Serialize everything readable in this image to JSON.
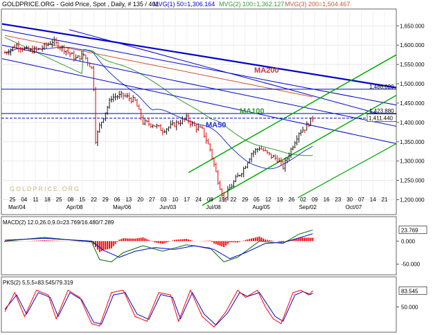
{
  "header": {
    "title": "GOLDPRICE.ORG - Gold Price, Spot , Daily, # 135 / 401",
    "mvg1": "MVG(1) 50=1,306.164",
    "mvg2": "MVG(2) 100=1,362.127",
    "mvg3": "MVG(3) 200=1,504.467"
  },
  "watermark": "GOLDPRICE.ORG",
  "colors": {
    "bull": "#111111",
    "bear": "#e00000",
    "trend": "#0000cc",
    "channel": "#00aa00",
    "ma50": "#2233cc",
    "ma100": "#339933",
    "ma200": "#cc5533",
    "macd_line": "#006600",
    "signal_line": "#0000cc",
    "hist": "#ff0000",
    "pks_k": "#ff0000",
    "pks_d": "#0000cc"
  },
  "chart_data": [
    {
      "type": "candlestick",
      "title": "Gold Price, Spot , Daily",
      "ylim": [
        1165,
        1690
      ],
      "yticks": [
        1200,
        1250,
        1300,
        1350,
        1400,
        1450,
        1500,
        1550,
        1600,
        1650
      ],
      "ytick_labels": [
        "1,200.000",
        "1,250.000",
        "1,300.000",
        "1,350.000",
        "1,400.000",
        "1,450.000",
        "1,500.000",
        "1,550.000",
        "1,600.000",
        "1,650.000"
      ],
      "xaxis_top": [
        "25",
        "04",
        "11",
        "18",
        "25",
        "08",
        "15",
        "22",
        "29",
        "06",
        "13",
        "20",
        "27",
        "03",
        "10",
        "17",
        "24",
        "08",
        "15",
        "22",
        "29",
        "05",
        "12",
        "19",
        "26",
        "02",
        "09",
        "16",
        "23",
        "30",
        "07",
        "14",
        "21"
      ],
      "xaxis_months": [
        "Mar/04",
        "Apr/08",
        "May/06",
        "Jun/03",
        "Jul/08",
        "Aug/05",
        "Sep/02",
        "Oct/07"
      ],
      "price_labels": [
        {
          "label": "1,486.020",
          "value": 1486,
          "color": "#0000cc"
        },
        {
          "label": "1,423.880",
          "value": 1423,
          "color": "#0000cc"
        },
        {
          "label": "1,411.440",
          "value": 1411,
          "color": "#0000cc",
          "boxed": true
        }
      ],
      "ma_labels": [
        "MA200",
        "MA100",
        "MA50"
      ],
      "candle_close_points": [
        {
          "bar": 0,
          "close": 1580
        },
        {
          "bar": 6,
          "close": 1600
        },
        {
          "bar": 12,
          "close": 1585
        },
        {
          "bar": 18,
          "close": 1590
        },
        {
          "bar": 24,
          "close": 1610
        },
        {
          "bar": 30,
          "close": 1590
        },
        {
          "bar": 36,
          "close": 1565
        },
        {
          "bar": 40,
          "close": 1575
        },
        {
          "bar": 44,
          "close": 1540
        },
        {
          "bar": 45,
          "close": 1490
        },
        {
          "bar": 46,
          "close": 1355
        },
        {
          "bar": 48,
          "close": 1390
        },
        {
          "bar": 54,
          "close": 1465
        },
        {
          "bar": 60,
          "close": 1470
        },
        {
          "bar": 66,
          "close": 1455
        },
        {
          "bar": 70,
          "close": 1400
        },
        {
          "bar": 75,
          "close": 1395
        },
        {
          "bar": 80,
          "close": 1380
        },
        {
          "bar": 86,
          "close": 1395
        },
        {
          "bar": 92,
          "close": 1410
        },
        {
          "bar": 96,
          "close": 1390
        },
        {
          "bar": 100,
          "close": 1380
        },
        {
          "bar": 104,
          "close": 1330
        },
        {
          "bar": 108,
          "close": 1250
        },
        {
          "bar": 111,
          "close": 1200
        },
        {
          "bar": 114,
          "close": 1230
        },
        {
          "bar": 118,
          "close": 1260
        },
        {
          "bar": 121,
          "close": 1280
        },
        {
          "bar": 125,
          "close": 1320
        },
        {
          "bar": 129,
          "close": 1335
        },
        {
          "bar": 134,
          "close": 1315
        },
        {
          "bar": 138,
          "close": 1305
        },
        {
          "bar": 141,
          "close": 1285
        },
        {
          "bar": 145,
          "close": 1330
        },
        {
          "bar": 149,
          "close": 1375
        },
        {
          "bar": 152,
          "close": 1385
        },
        {
          "bar": 156,
          "close": 1411
        }
      ]
    },
    {
      "type": "line",
      "title": "MACD(2) 12.0,26.0,9.0=23.769/16.480/7.289",
      "ylim": [
        -70,
        50
      ],
      "yticks": [
        0,
        -50
      ],
      "ytick_labels": [
        "0.000",
        "-50.000"
      ],
      "last_label": "23.769",
      "macd_points": [
        {
          "bar": 0,
          "value": 0
        },
        {
          "bar": 20,
          "value": 8
        },
        {
          "bar": 44,
          "value": -2
        },
        {
          "bar": 48,
          "value": -40
        },
        {
          "bar": 54,
          "value": -45
        },
        {
          "bar": 60,
          "value": -25
        },
        {
          "bar": 70,
          "value": -10
        },
        {
          "bar": 80,
          "value": -22
        },
        {
          "bar": 92,
          "value": -8
        },
        {
          "bar": 104,
          "value": -15
        },
        {
          "bar": 111,
          "value": -45
        },
        {
          "bar": 118,
          "value": -35
        },
        {
          "bar": 129,
          "value": 0
        },
        {
          "bar": 141,
          "value": -5
        },
        {
          "bar": 149,
          "value": 15
        },
        {
          "bar": 156,
          "value": 24
        }
      ],
      "signal_points": [
        {
          "bar": 0,
          "value": 2
        },
        {
          "bar": 20,
          "value": 6
        },
        {
          "bar": 44,
          "value": 0
        },
        {
          "bar": 50,
          "value": -20
        },
        {
          "bar": 58,
          "value": -35
        },
        {
          "bar": 66,
          "value": -22
        },
        {
          "bar": 76,
          "value": -14
        },
        {
          "bar": 86,
          "value": -18
        },
        {
          "bar": 96,
          "value": -10
        },
        {
          "bar": 106,
          "value": -18
        },
        {
          "bar": 114,
          "value": -38
        },
        {
          "bar": 122,
          "value": -25
        },
        {
          "bar": 132,
          "value": -5
        },
        {
          "bar": 142,
          "value": -2
        },
        {
          "bar": 150,
          "value": 8
        },
        {
          "bar": 156,
          "value": 16
        }
      ]
    },
    {
      "type": "line",
      "title": "PKS(2) 5,5,5=83.545/79.319",
      "ylim": [
        0,
        110
      ],
      "yticks": [
        50
      ],
      "ytick_labels": [
        "50.000"
      ],
      "last_label": "83.545",
      "k_points": [
        {
          "bar": 0,
          "value": 40
        },
        {
          "bar": 5,
          "value": 80
        },
        {
          "bar": 10,
          "value": 30
        },
        {
          "bar": 16,
          "value": 85
        },
        {
          "bar": 22,
          "value": 75
        },
        {
          "bar": 26,
          "value": 25
        },
        {
          "bar": 32,
          "value": 85
        },
        {
          "bar": 38,
          "value": 70
        },
        {
          "bar": 44,
          "value": 15
        },
        {
          "bar": 48,
          "value": 10
        },
        {
          "bar": 54,
          "value": 80
        },
        {
          "bar": 60,
          "value": 85
        },
        {
          "bar": 66,
          "value": 30
        },
        {
          "bar": 72,
          "value": 20
        },
        {
          "bar": 78,
          "value": 80
        },
        {
          "bar": 84,
          "value": 75
        },
        {
          "bar": 88,
          "value": 20
        },
        {
          "bar": 94,
          "value": 85
        },
        {
          "bar": 100,
          "value": 30
        },
        {
          "bar": 106,
          "value": 8
        },
        {
          "bar": 112,
          "value": 40
        },
        {
          "bar": 118,
          "value": 85
        },
        {
          "bar": 122,
          "value": 70
        },
        {
          "bar": 128,
          "value": 85
        },
        {
          "bar": 132,
          "value": 50
        },
        {
          "bar": 136,
          "value": 25
        },
        {
          "bar": 140,
          "value": 15
        },
        {
          "bar": 146,
          "value": 80
        },
        {
          "bar": 150,
          "value": 85
        },
        {
          "bar": 154,
          "value": 75
        },
        {
          "bar": 156,
          "value": 84
        }
      ],
      "d_points": [
        {
          "bar": 0,
          "value": 45
        },
        {
          "bar": 6,
          "value": 75
        },
        {
          "bar": 11,
          "value": 35
        },
        {
          "bar": 17,
          "value": 80
        },
        {
          "bar": 23,
          "value": 70
        },
        {
          "bar": 27,
          "value": 30
        },
        {
          "bar": 33,
          "value": 80
        },
        {
          "bar": 39,
          "value": 65
        },
        {
          "bar": 45,
          "value": 18
        },
        {
          "bar": 49,
          "value": 14
        },
        {
          "bar": 55,
          "value": 75
        },
        {
          "bar": 61,
          "value": 80
        },
        {
          "bar": 67,
          "value": 35
        },
        {
          "bar": 73,
          "value": 24
        },
        {
          "bar": 79,
          "value": 76
        },
        {
          "bar": 85,
          "value": 70
        },
        {
          "bar": 89,
          "value": 25
        },
        {
          "bar": 95,
          "value": 80
        },
        {
          "bar": 101,
          "value": 35
        },
        {
          "bar": 107,
          "value": 12
        },
        {
          "bar": 113,
          "value": 38
        },
        {
          "bar": 119,
          "value": 80
        },
        {
          "bar": 123,
          "value": 72
        },
        {
          "bar": 129,
          "value": 80
        },
        {
          "bar": 133,
          "value": 55
        },
        {
          "bar": 137,
          "value": 30
        },
        {
          "bar": 141,
          "value": 20
        },
        {
          "bar": 147,
          "value": 75
        },
        {
          "bar": 151,
          "value": 82
        },
        {
          "bar": 155,
          "value": 76
        },
        {
          "bar": 156,
          "value": 79
        }
      ]
    }
  ]
}
